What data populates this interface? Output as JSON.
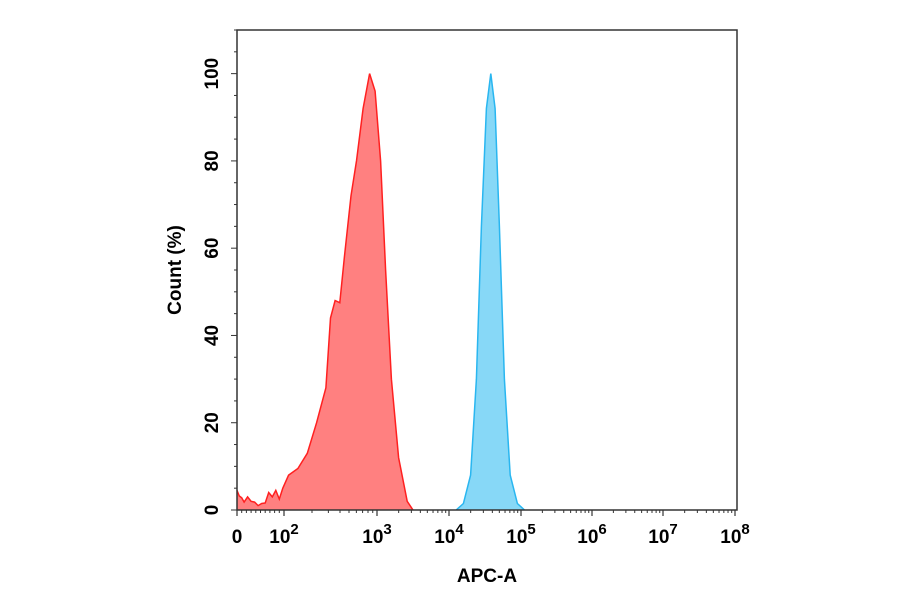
{
  "chart_data": {
    "type": "area",
    "title": "",
    "xlabel": "APC-A",
    "ylabel": "Count (%)",
    "x_scale": "biexponential",
    "x_tick_labels": [
      {
        "base": "0",
        "exp": ""
      },
      {
        "base": "10",
        "exp": "2"
      },
      {
        "base": "10",
        "exp": "3"
      },
      {
        "base": "10",
        "exp": "4"
      },
      {
        "base": "10",
        "exp": "5"
      },
      {
        "base": "10",
        "exp": "6"
      },
      {
        "base": "10",
        "exp": "7"
      },
      {
        "base": "10",
        "exp": "8"
      }
    ],
    "y_ticks": [
      0,
      20,
      40,
      60,
      80,
      100
    ],
    "ylim": [
      0,
      110
    ],
    "grid": false,
    "legend": "none",
    "series": [
      {
        "name": "red-histogram",
        "color": "#ff2020",
        "fill": "#ff8080",
        "peak_x": "~1.3e3",
        "peak_y": 100,
        "points": [
          [
            0,
            4.5
          ],
          [
            0.1,
            3.2
          ],
          [
            0.2,
            2.8
          ],
          [
            0.3,
            1.8
          ],
          [
            0.45,
            3.0
          ],
          [
            0.6,
            2.0
          ],
          [
            0.75,
            1.8
          ],
          [
            0.9,
            1.0
          ],
          [
            1.05,
            1.5
          ],
          [
            1.2,
            1.6
          ],
          [
            1.35,
            4.0
          ],
          [
            1.5,
            3.0
          ],
          [
            1.65,
            4.5
          ],
          [
            1.8,
            2.5
          ],
          [
            1.95,
            5.0
          ],
          [
            2.05,
            8.0
          ],
          [
            2.15,
            9.5
          ],
          [
            2.25,
            13.0
          ],
          [
            2.35,
            20.0
          ],
          [
            2.45,
            28.0
          ],
          [
            2.5,
            44.0
          ],
          [
            2.55,
            48.0
          ],
          [
            2.6,
            47.5
          ],
          [
            2.65,
            58.0
          ],
          [
            2.72,
            72.0
          ],
          [
            2.78,
            80.0
          ],
          [
            2.85,
            92.0
          ],
          [
            2.92,
            100.0
          ],
          [
            2.98,
            96.0
          ],
          [
            3.05,
            80.0
          ],
          [
            3.12,
            55.0
          ],
          [
            3.2,
            30.0
          ],
          [
            3.3,
            12.0
          ],
          [
            3.42,
            2.0
          ],
          [
            3.5,
            0.0
          ]
        ]
      },
      {
        "name": "blue-histogram",
        "color": "#29b6f0",
        "fill": "#87d8f7",
        "peak_x": "~4e4",
        "peak_y": 100,
        "points": [
          [
            4.1,
            0.0
          ],
          [
            4.2,
            1.5
          ],
          [
            4.3,
            8.0
          ],
          [
            4.38,
            30.0
          ],
          [
            4.45,
            65.0
          ],
          [
            4.52,
            92.0
          ],
          [
            4.58,
            100.0
          ],
          [
            4.64,
            92.0
          ],
          [
            4.7,
            65.0
          ],
          [
            4.77,
            30.0
          ],
          [
            4.85,
            8.0
          ],
          [
            4.95,
            1.5
          ],
          [
            5.05,
            0.0
          ]
        ]
      }
    ]
  },
  "axes": {
    "x_title": "APC-A",
    "y_title": "Count (%)"
  }
}
